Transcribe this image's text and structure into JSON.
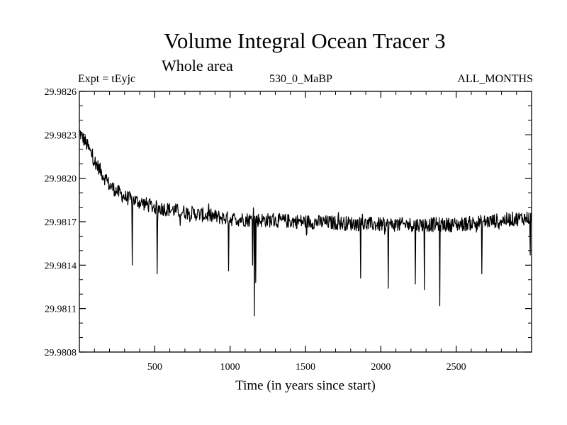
{
  "chart_data": {
    "type": "line",
    "title": "Volume Integral Ocean Tracer 3",
    "subtitle": "Whole area",
    "left_label": "Expt = tEyjc",
    "center_label": "530_0_MaBP",
    "right_label": "ALL_MONTHS",
    "xlabel": "Time (in years since start)",
    "ylabel": "",
    "xlim": [
      0,
      3000
    ],
    "ylim": [
      29.9808,
      29.9826
    ],
    "xticks": [
      500,
      1000,
      1500,
      2000,
      2500
    ],
    "xtick_labels": [
      "500",
      "1000",
      "1500",
      "2000",
      "2500"
    ],
    "yticks": [
      29.9808,
      29.9811,
      29.9814,
      29.9817,
      29.982,
      29.9823,
      29.9826
    ],
    "ytick_labels": [
      "29.9808",
      "29.9811",
      "29.9814",
      "29.9817",
      "29.9820",
      "29.9823",
      "29.9826"
    ],
    "series": [
      {
        "name": "Volume Integral Ocean Tracer 3",
        "x_start": 0,
        "x_step": 3,
        "trend": {
          "x": [
            0,
            50,
            100,
            200,
            300,
            500,
            800,
            1000,
            1500,
            2000,
            2500,
            3000
          ],
          "y": [
            29.98232,
            29.98223,
            29.98212,
            29.98195,
            29.98187,
            29.9818,
            29.98175,
            29.98172,
            29.9817,
            29.98168,
            29.98168,
            29.98173
          ]
        },
        "noise_amplitude": 5e-05,
        "spikes": [
          {
            "x": 350,
            "y": 29.9814
          },
          {
            "x": 515,
            "y": 29.98134
          },
          {
            "x": 990,
            "y": 29.98136
          },
          {
            "x": 1150,
            "y": 29.9814
          },
          {
            "x": 1160,
            "y": 29.98105
          },
          {
            "x": 1170,
            "y": 29.98128
          },
          {
            "x": 1865,
            "y": 29.98131
          },
          {
            "x": 2050,
            "y": 29.98124
          },
          {
            "x": 2230,
            "y": 29.98127
          },
          {
            "x": 2290,
            "y": 29.98123
          },
          {
            "x": 2390,
            "y": 29.98112
          },
          {
            "x": 2670,
            "y": 29.98134
          },
          {
            "x": 2990,
            "y": 29.98147
          }
        ]
      }
    ]
  }
}
